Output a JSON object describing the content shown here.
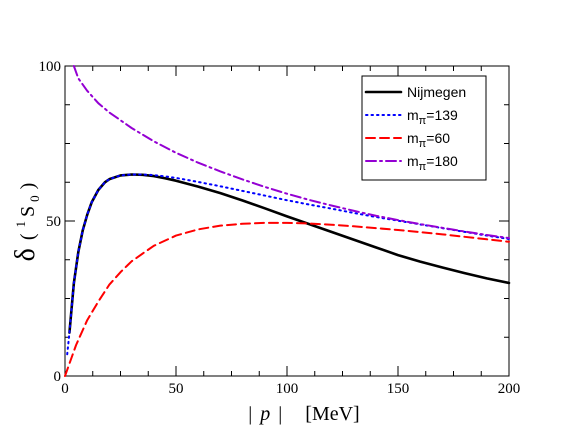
{
  "chart_data": {
    "type": "line",
    "xlabel": {
      "bar_left": "|",
      "var": "p",
      "bar_right": "|",
      "unit": "[MeV]"
    },
    "ylabel": {
      "symbol": "δ",
      "open": "(",
      "sup": "1",
      "letter": "S",
      "sub": "0",
      "close": ")"
    },
    "xlim": [
      0,
      200
    ],
    "ylim": [
      0,
      100
    ],
    "xticks": [
      0,
      50,
      100,
      150,
      200
    ],
    "yticks": [
      0,
      50,
      100
    ],
    "x_minor_step": 12.5,
    "y_minor_step": 12.5,
    "grid": false,
    "legend_position": "top-right",
    "series": [
      {
        "name": "Nijmegen",
        "legend_main": "Nijmegen",
        "legend_sub": "",
        "legend_suffix": "",
        "color": "#000000",
        "dash": "solid",
        "x": [
          2,
          3,
          4,
          6,
          8,
          10,
          12,
          15,
          18,
          20,
          25,
          30,
          35,
          40,
          45,
          50,
          60,
          70,
          80,
          90,
          100,
          110,
          120,
          130,
          140,
          150,
          160,
          170,
          180,
          190,
          200
        ],
        "y": [
          14,
          22,
          30,
          40,
          47,
          52,
          56,
          60,
          62.5,
          63.5,
          64.7,
          65.0,
          64.9,
          64.5,
          63.8,
          63.0,
          61.1,
          59.0,
          56.6,
          54.1,
          51.5,
          49.0,
          46.5,
          44.0,
          41.5,
          39.0,
          36.9,
          35.0,
          33.2,
          31.5,
          30.0
        ]
      },
      {
        "name": "m_π=139",
        "legend_main": "m",
        "legend_sub": "π",
        "legend_suffix": "=139",
        "color": "#0000ff",
        "dash": "dotted",
        "x": [
          1,
          2,
          3,
          4,
          6,
          8,
          10,
          12,
          15,
          18,
          20,
          25,
          30,
          35,
          40,
          45,
          50,
          60,
          70,
          80,
          90,
          100,
          110,
          120,
          130,
          140,
          150,
          160,
          170,
          180,
          190,
          200
        ],
        "y": [
          7,
          14,
          22,
          30,
          40,
          47,
          52,
          56,
          60,
          62.5,
          63.5,
          64.7,
          65.0,
          65.0,
          64.8,
          64.4,
          63.9,
          62.6,
          61.2,
          59.7,
          58.2,
          56.7,
          55.3,
          54.0,
          52.6,
          51.3,
          50.1,
          48.9,
          47.7,
          46.5,
          45.3,
          44.2
        ]
      },
      {
        "name": "m_π=60",
        "legend_main": "m",
        "legend_sub": "π",
        "legend_suffix": "=60",
        "color": "#ff0000",
        "dash": "dashed",
        "x": [
          0,
          2,
          5,
          10,
          15,
          20,
          25,
          30,
          40,
          50,
          60,
          70,
          80,
          90,
          100,
          110,
          120,
          130,
          140,
          150,
          160,
          170,
          180,
          190,
          200
        ],
        "y": [
          0,
          4,
          10,
          18,
          24,
          29.5,
          33.5,
          37,
          42,
          45.3,
          47.3,
          48.5,
          49.1,
          49.4,
          49.4,
          49.2,
          48.8,
          48.3,
          47.7,
          47.1,
          46.4,
          45.7,
          44.9,
          44.1,
          43.3
        ]
      },
      {
        "name": "m_π=180",
        "legend_main": "m",
        "legend_sub": "π",
        "legend_suffix": "=180",
        "color": "#9400d3",
        "dash": "dashdot",
        "x": [
          4,
          6,
          10,
          15,
          20,
          25,
          30,
          40,
          50,
          60,
          70,
          80,
          90,
          100,
          110,
          120,
          130,
          140,
          150,
          160,
          170,
          180,
          190,
          200
        ],
        "y": [
          100,
          96,
          92,
          88,
          85,
          82.5,
          80,
          75.7,
          72,
          68.8,
          66,
          63.4,
          61,
          58.8,
          56.8,
          55,
          53.3,
          51.7,
          50.3,
          49,
          47.8,
          46.6,
          45.5,
          44.5
        ]
      }
    ]
  }
}
